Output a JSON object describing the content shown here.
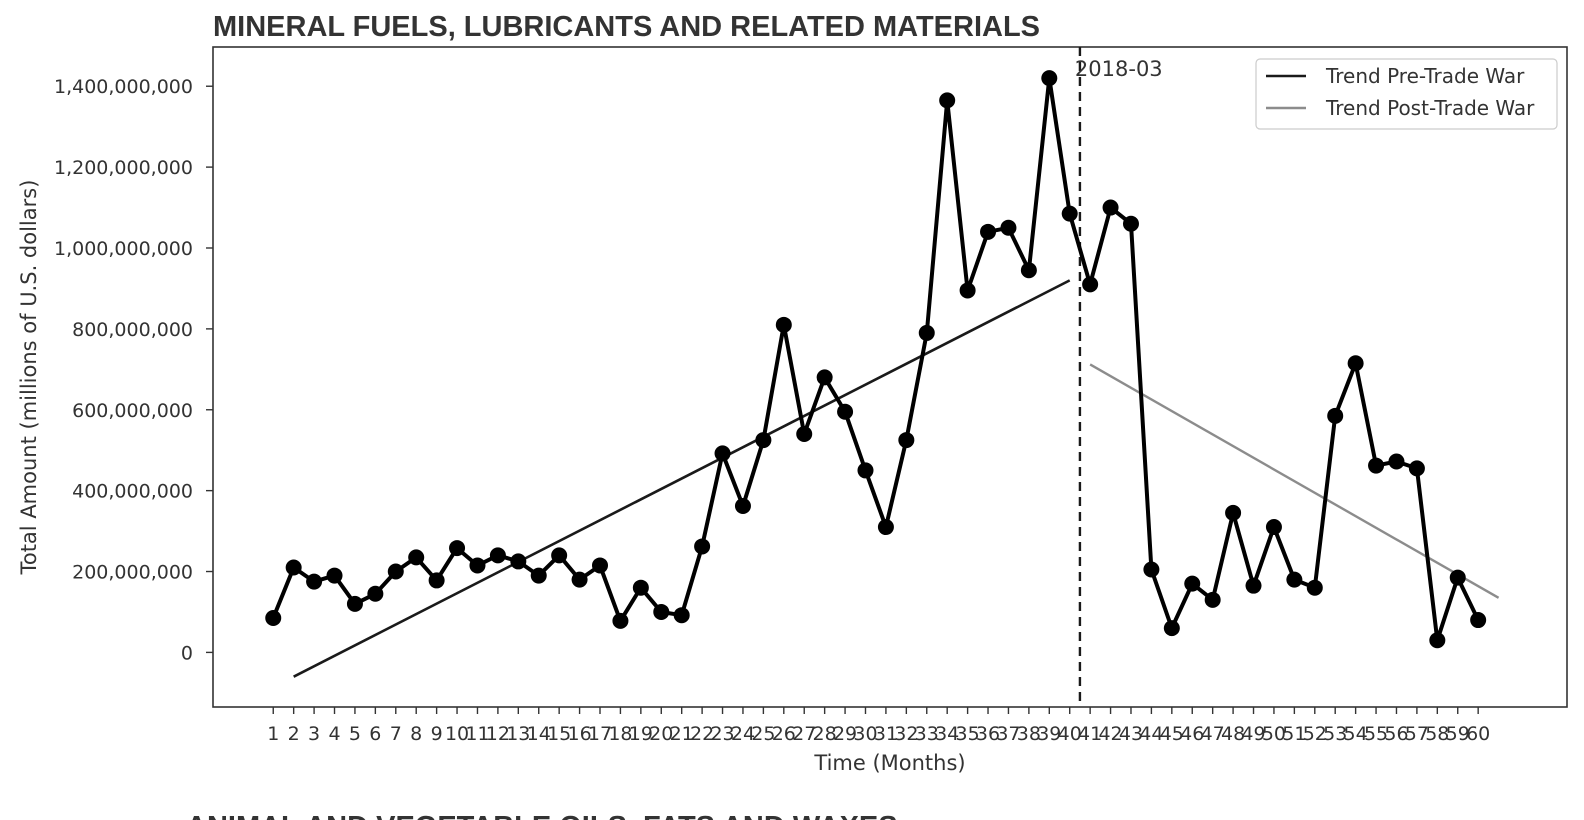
{
  "chart_data": {
    "type": "line",
    "title": "MINERAL FUELS, LUBRICANTS AND RELATED MATERIALS",
    "xlabel": "Time (Months)",
    "ylabel": "Total Amount (millions of U.S. dollars)",
    "x": [
      1,
      2,
      3,
      4,
      5,
      6,
      7,
      8,
      9,
      10,
      11,
      12,
      13,
      14,
      15,
      16,
      17,
      18,
      19,
      20,
      21,
      22,
      23,
      24,
      25,
      26,
      27,
      28,
      29,
      30,
      31,
      32,
      33,
      34,
      35,
      36,
      37,
      38,
      39,
      40,
      41,
      42,
      43,
      44,
      45,
      46,
      47,
      48,
      49,
      50,
      51,
      52,
      53,
      54,
      55,
      56,
      57,
      58,
      59,
      60
    ],
    "series": [
      {
        "values": [
          85000000,
          210000000,
          175000000,
          190000000,
          120000000,
          145000000,
          200000000,
          235000000,
          178000000,
          258000000,
          215000000,
          240000000,
          225000000,
          190000000,
          240000000,
          180000000,
          215000000,
          78000000,
          160000000,
          100000000,
          92000000,
          262000000,
          492000000,
          362000000,
          525000000,
          810000000,
          540000000,
          680000000,
          595000000,
          450000000,
          310000000,
          525000000,
          790000000,
          1365000000,
          895000000,
          1040000000,
          1050000000,
          945000000,
          1420000000,
          1085000000,
          910000000,
          1100000000,
          1060000000,
          205000000,
          60000000,
          170000000,
          130000000,
          345000000,
          165000000,
          310000000,
          180000000,
          160000000,
          585000000,
          715000000,
          462000000,
          472000000,
          455000000,
          30000000,
          185000000,
          80000000
        ]
      }
    ],
    "trends": [
      {
        "name": "Trend Pre-Trade War",
        "color": "#1a1a1a",
        "start": [
          2,
          -60000000
        ],
        "end": [
          40,
          920000000
        ]
      },
      {
        "name": "Trend Post-Trade War",
        "color": "#8c8c8c",
        "start": [
          41,
          712000000
        ],
        "end": [
          61,
          135000000
        ]
      }
    ],
    "vline": {
      "x": 40.5,
      "label": "2018-03"
    },
    "yticks": [
      0,
      200000000,
      400000000,
      600000000,
      800000000,
      1000000000,
      1200000000,
      1400000000
    ],
    "ytick_labels": [
      "0",
      "200,000,000",
      "400,000,000",
      "600,000,000",
      "800,000,000",
      "1,000,000,000",
      "1,200,000,000",
      "1,400,000,000"
    ],
    "xlim": [
      -1.95,
      64.35
    ],
    "ylim": [
      -135000000,
      1497000000
    ],
    "grid": false,
    "legend_position": "top-right",
    "line_color": "#000000"
  },
  "next_chart_title_partial": "ANIMAL AND VEGETABLE OILS, FATS AND WAXES"
}
